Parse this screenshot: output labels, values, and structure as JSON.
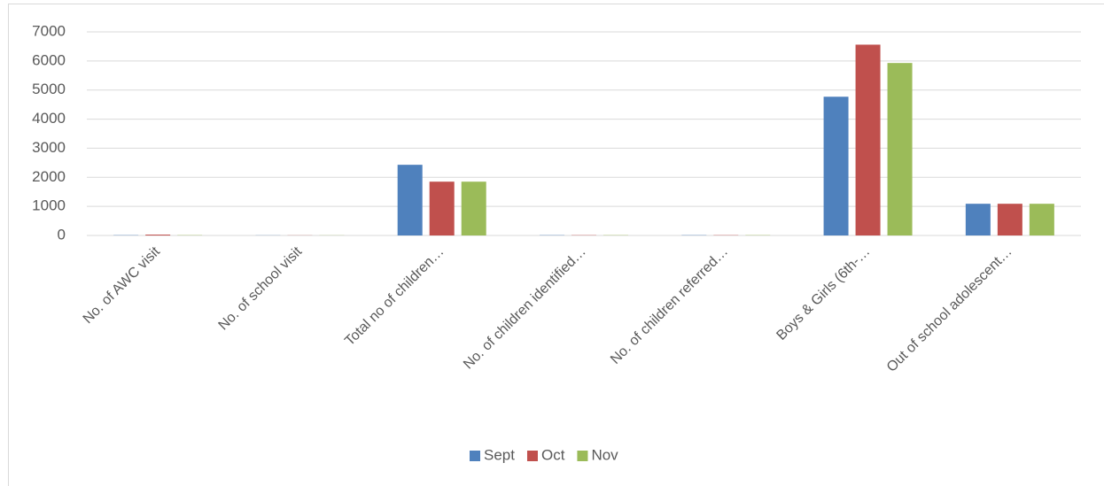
{
  "chart_data": {
    "type": "bar",
    "categories": [
      "No. of AWC visit",
      "No. of school visit",
      "Total no of children…",
      "No. of children identified…",
      "No. of children referred…",
      "Boys & Girls (6th-…",
      "Out of school adolescent…"
    ],
    "series": [
      {
        "name": "Sept",
        "color": "#4f81bd",
        "values": [
          10,
          5,
          2430,
          10,
          10,
          4770,
          1090
        ]
      },
      {
        "name": "Oct",
        "color": "#c0504d",
        "values": [
          30,
          5,
          1850,
          10,
          10,
          6560,
          1090
        ]
      },
      {
        "name": "Nov",
        "color": "#9bbb59",
        "values": [
          10,
          5,
          1850,
          10,
          10,
          5930,
          1090
        ]
      }
    ],
    "ylim": [
      0,
      7000
    ],
    "yticks": [
      0,
      1000,
      2000,
      3000,
      4000,
      5000,
      6000,
      7000
    ],
    "grid": true,
    "legend": "bottom"
  }
}
